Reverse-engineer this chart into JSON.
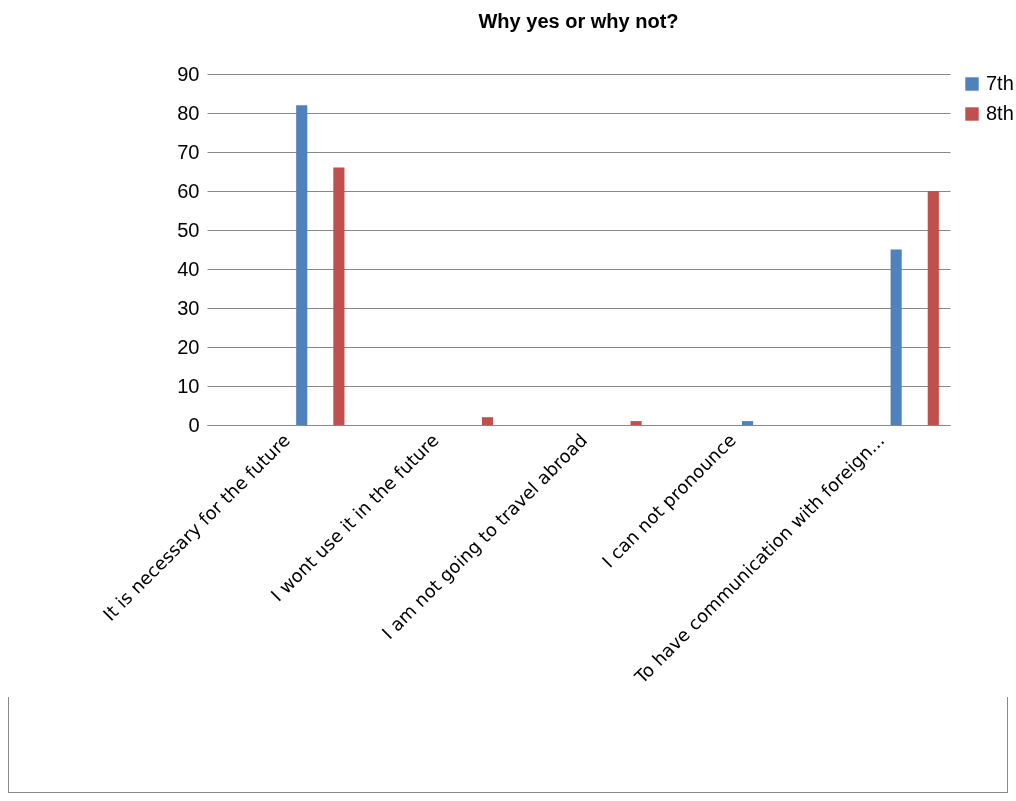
{
  "chart_data": {
    "type": "bar",
    "title": "Why yes or why not?",
    "categories": [
      "It is necessary for the future",
      "I wont use it in the future",
      "I am not going to travel abroad",
      "I can not pronounce",
      "To have communication with foreign..."
    ],
    "series": [
      {
        "name": "7th",
        "color": "#4f81bd",
        "values": [
          82,
          0,
          0,
          1,
          45
        ]
      },
      {
        "name": "8th",
        "color": "#c0504d",
        "values": [
          66,
          2,
          1,
          0,
          60
        ]
      }
    ],
    "ylim": [
      0,
      90
    ],
    "yticks": [
      0,
      10,
      20,
      30,
      40,
      50,
      60,
      70,
      80,
      90
    ],
    "grid": "y",
    "legend": "right"
  }
}
